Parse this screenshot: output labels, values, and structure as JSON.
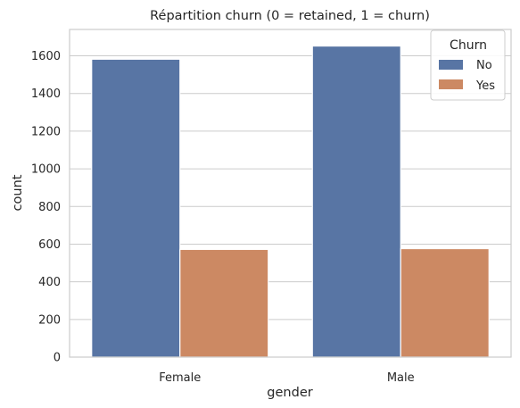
{
  "chart_data": {
    "type": "bar",
    "title": "Répartition churn (0 = retained, 1 = churn)",
    "xlabel": "gender",
    "ylabel": "count",
    "categories": [
      "Female",
      "Male"
    ],
    "series": [
      {
        "name": "No",
        "values": [
          1582,
          1652
        ],
        "color": "#5875a4"
      },
      {
        "name": "Yes",
        "values": [
          572,
          576
        ],
        "color": "#cc8963"
      }
    ],
    "ylim": [
      0,
      1740
    ],
    "yticks": [
      0,
      200,
      400,
      600,
      800,
      1000,
      1200,
      1400,
      1600
    ],
    "grid": "horizontal",
    "legend": {
      "title": "Churn",
      "placement": "top-right"
    }
  }
}
